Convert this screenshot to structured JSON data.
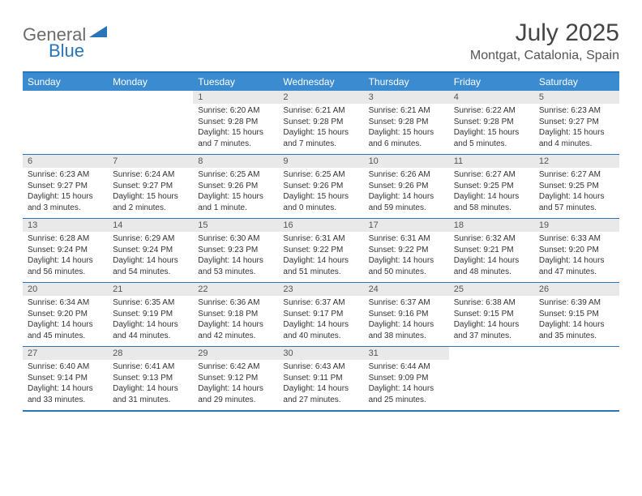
{
  "logo": {
    "text1": "General",
    "text2": "Blue",
    "color1": "#6b6b6b",
    "color2": "#2a74b8",
    "triangle_color": "#2a74b8"
  },
  "title": "July 2025",
  "location": "Montgat, Catalonia, Spain",
  "colors": {
    "header_bar": "#3a8bd0",
    "border": "#2a74b8",
    "daynum_bg": "#e9e9e9",
    "text": "#333333",
    "title_text": "#444444",
    "loc_text": "#555555"
  },
  "day_headers": [
    "Sunday",
    "Monday",
    "Tuesday",
    "Wednesday",
    "Thursday",
    "Friday",
    "Saturday"
  ],
  "weeks": [
    [
      {
        "empty": true
      },
      {
        "empty": true
      },
      {
        "n": "1",
        "sr": "6:20 AM",
        "ss": "9:28 PM",
        "dl": "15 hours and 7 minutes."
      },
      {
        "n": "2",
        "sr": "6:21 AM",
        "ss": "9:28 PM",
        "dl": "15 hours and 7 minutes."
      },
      {
        "n": "3",
        "sr": "6:21 AM",
        "ss": "9:28 PM",
        "dl": "15 hours and 6 minutes."
      },
      {
        "n": "4",
        "sr": "6:22 AM",
        "ss": "9:28 PM",
        "dl": "15 hours and 5 minutes."
      },
      {
        "n": "5",
        "sr": "6:23 AM",
        "ss": "9:27 PM",
        "dl": "15 hours and 4 minutes."
      }
    ],
    [
      {
        "n": "6",
        "sr": "6:23 AM",
        "ss": "9:27 PM",
        "dl": "15 hours and 3 minutes."
      },
      {
        "n": "7",
        "sr": "6:24 AM",
        "ss": "9:27 PM",
        "dl": "15 hours and 2 minutes."
      },
      {
        "n": "8",
        "sr": "6:25 AM",
        "ss": "9:26 PM",
        "dl": "15 hours and 1 minute."
      },
      {
        "n": "9",
        "sr": "6:25 AM",
        "ss": "9:26 PM",
        "dl": "15 hours and 0 minutes."
      },
      {
        "n": "10",
        "sr": "6:26 AM",
        "ss": "9:26 PM",
        "dl": "14 hours and 59 minutes."
      },
      {
        "n": "11",
        "sr": "6:27 AM",
        "ss": "9:25 PM",
        "dl": "14 hours and 58 minutes."
      },
      {
        "n": "12",
        "sr": "6:27 AM",
        "ss": "9:25 PM",
        "dl": "14 hours and 57 minutes."
      }
    ],
    [
      {
        "n": "13",
        "sr": "6:28 AM",
        "ss": "9:24 PM",
        "dl": "14 hours and 56 minutes."
      },
      {
        "n": "14",
        "sr": "6:29 AM",
        "ss": "9:24 PM",
        "dl": "14 hours and 54 minutes."
      },
      {
        "n": "15",
        "sr": "6:30 AM",
        "ss": "9:23 PM",
        "dl": "14 hours and 53 minutes."
      },
      {
        "n": "16",
        "sr": "6:31 AM",
        "ss": "9:22 PM",
        "dl": "14 hours and 51 minutes."
      },
      {
        "n": "17",
        "sr": "6:31 AM",
        "ss": "9:22 PM",
        "dl": "14 hours and 50 minutes."
      },
      {
        "n": "18",
        "sr": "6:32 AM",
        "ss": "9:21 PM",
        "dl": "14 hours and 48 minutes."
      },
      {
        "n": "19",
        "sr": "6:33 AM",
        "ss": "9:20 PM",
        "dl": "14 hours and 47 minutes."
      }
    ],
    [
      {
        "n": "20",
        "sr": "6:34 AM",
        "ss": "9:20 PM",
        "dl": "14 hours and 45 minutes."
      },
      {
        "n": "21",
        "sr": "6:35 AM",
        "ss": "9:19 PM",
        "dl": "14 hours and 44 minutes."
      },
      {
        "n": "22",
        "sr": "6:36 AM",
        "ss": "9:18 PM",
        "dl": "14 hours and 42 minutes."
      },
      {
        "n": "23",
        "sr": "6:37 AM",
        "ss": "9:17 PM",
        "dl": "14 hours and 40 minutes."
      },
      {
        "n": "24",
        "sr": "6:37 AM",
        "ss": "9:16 PM",
        "dl": "14 hours and 38 minutes."
      },
      {
        "n": "25",
        "sr": "6:38 AM",
        "ss": "9:15 PM",
        "dl": "14 hours and 37 minutes."
      },
      {
        "n": "26",
        "sr": "6:39 AM",
        "ss": "9:15 PM",
        "dl": "14 hours and 35 minutes."
      }
    ],
    [
      {
        "n": "27",
        "sr": "6:40 AM",
        "ss": "9:14 PM",
        "dl": "14 hours and 33 minutes."
      },
      {
        "n": "28",
        "sr": "6:41 AM",
        "ss": "9:13 PM",
        "dl": "14 hours and 31 minutes."
      },
      {
        "n": "29",
        "sr": "6:42 AM",
        "ss": "9:12 PM",
        "dl": "14 hours and 29 minutes."
      },
      {
        "n": "30",
        "sr": "6:43 AM",
        "ss": "9:11 PM",
        "dl": "14 hours and 27 minutes."
      },
      {
        "n": "31",
        "sr": "6:44 AM",
        "ss": "9:09 PM",
        "dl": "14 hours and 25 minutes."
      },
      {
        "empty": true
      },
      {
        "empty": true
      }
    ]
  ],
  "labels": {
    "sunrise": "Sunrise:",
    "sunset": "Sunset:",
    "daylight": "Daylight:"
  }
}
